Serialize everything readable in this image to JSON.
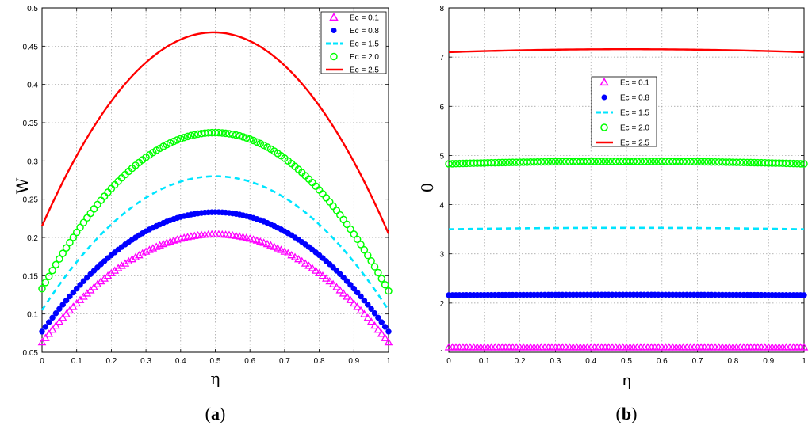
{
  "chart_data": [
    {
      "type": "line",
      "panel": "(a)",
      "caption_letter": "a",
      "xlabel": "η",
      "ylabel": "W",
      "xlim": [
        0,
        1
      ],
      "ylim": [
        0.05,
        0.5
      ],
      "xticks": [
        "0",
        "0.1",
        "0.2",
        "0.3",
        "0.4",
        "0.5",
        "0.6",
        "0.7",
        "0.8",
        "0.9",
        "1"
      ],
      "yticks": [
        "0.05",
        "0.1",
        "0.15",
        "0.2",
        "0.25",
        "0.3",
        "0.35",
        "0.4",
        "0.45",
        "0.5"
      ],
      "grid": true,
      "legend_position": "top-right",
      "series": [
        {
          "name": "Ec = 0.1",
          "marker": "triangle",
          "color": "#ff00ff",
          "x_points": [
            0,
            0.5,
            1
          ],
          "values": [
            0.063,
            0.204,
            0.063
          ]
        },
        {
          "name": "Ec = 0.8",
          "marker": "dot",
          "color": "#0000ff",
          "x_points": [
            0,
            0.5,
            1
          ],
          "values": [
            0.077,
            0.233,
            0.077
          ]
        },
        {
          "name": "Ec = 1.5",
          "marker": "dashed",
          "color": "#00e5ff",
          "x_points": [
            0,
            0.5,
            1
          ],
          "values": [
            0.105,
            0.28,
            0.105
          ]
        },
        {
          "name": "Ec = 2.0",
          "marker": "circle",
          "color": "#00ff00",
          "x_points": [
            0,
            0.5,
            1
          ],
          "values": [
            0.133,
            0.337,
            0.13
          ]
        },
        {
          "name": "Ec = 2.5",
          "marker": "line",
          "color": "#ff0000",
          "x_points": [
            0,
            0.5,
            1
          ],
          "values": [
            0.215,
            0.468,
            0.205
          ]
        }
      ]
    },
    {
      "type": "line",
      "panel": "(b)",
      "caption_letter": "b",
      "xlabel": "η",
      "ylabel": "θ",
      "xlim": [
        0,
        1
      ],
      "ylim": [
        1,
        8
      ],
      "xticks": [
        "0",
        "0.1",
        "0.2",
        "0.3",
        "0.4",
        "0.5",
        "0.6",
        "0.7",
        "0.8",
        "0.9",
        "1"
      ],
      "yticks": [
        "1",
        "2",
        "3",
        "4",
        "5",
        "6",
        "7",
        "8"
      ],
      "grid": true,
      "legend_position": "upper-center",
      "series": [
        {
          "name": "Ec = 0.1",
          "marker": "triangle",
          "color": "#ff00ff",
          "x_points": [
            0,
            0.5,
            1
          ],
          "values": [
            1.1,
            1.1,
            1.1
          ]
        },
        {
          "name": "Ec = 0.8",
          "marker": "dot",
          "color": "#0000ff",
          "x_points": [
            0,
            0.5,
            1
          ],
          "values": [
            2.16,
            2.17,
            2.16
          ]
        },
        {
          "name": "Ec = 1.5",
          "marker": "dashed",
          "color": "#00e5ff",
          "x_points": [
            0,
            0.5,
            1
          ],
          "values": [
            3.5,
            3.53,
            3.5
          ]
        },
        {
          "name": "Ec = 2.0",
          "marker": "circle",
          "color": "#00ff00",
          "x_points": [
            0,
            0.5,
            1
          ],
          "values": [
            4.83,
            4.88,
            4.83
          ]
        },
        {
          "name": "Ec = 2.5",
          "marker": "line",
          "color": "#ff0000",
          "x_points": [
            0,
            0.5,
            1
          ],
          "values": [
            7.1,
            7.16,
            7.1
          ]
        }
      ]
    }
  ]
}
